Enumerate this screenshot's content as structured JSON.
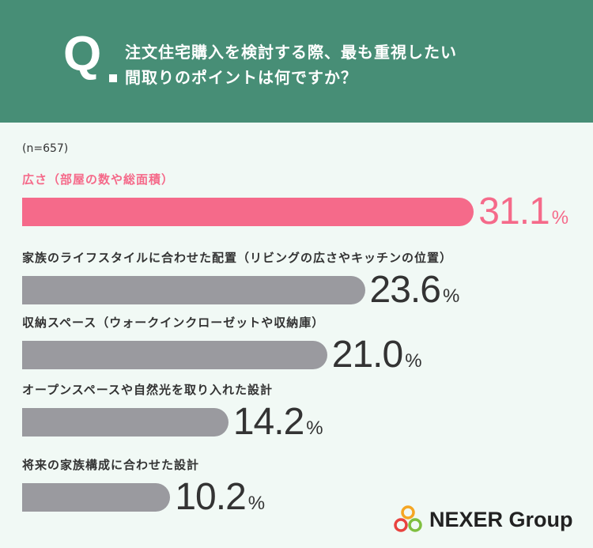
{
  "header": {
    "q_letter": "Q",
    "question_line1": "注文住宅購入を検討する際、最も重視したい",
    "question_line2": "間取りのポイントは何ですか？"
  },
  "sample_size": "(n=657)",
  "chart_data": {
    "type": "bar",
    "orientation": "horizontal",
    "title": "注文住宅購入を検討する際、最も重視したい間取りのポイントは何ですか？",
    "categories": [
      "広さ（部屋の数や総面積）",
      "家族のライフスタイルに合わせた配置（リビングの広さやキッチンの位置）",
      "収納スペース（ウォークインクローゼットや収納庫）",
      "オープンスペースや自然光を取り入れた設計",
      "将来の家族構成に合わせた設計"
    ],
    "values": [
      31.1,
      23.6,
      21.0,
      14.2,
      10.2
    ],
    "value_labels": [
      "31.1",
      "23.6",
      "21.0",
      "14.2",
      "10.2"
    ],
    "unit": "%",
    "highlight_color": "#f56a8a",
    "bar_color": "#9a9a9f",
    "highlight_index": 0
  },
  "logo": {
    "text": "NEXER Group",
    "icon": "nexer-rings-icon"
  }
}
